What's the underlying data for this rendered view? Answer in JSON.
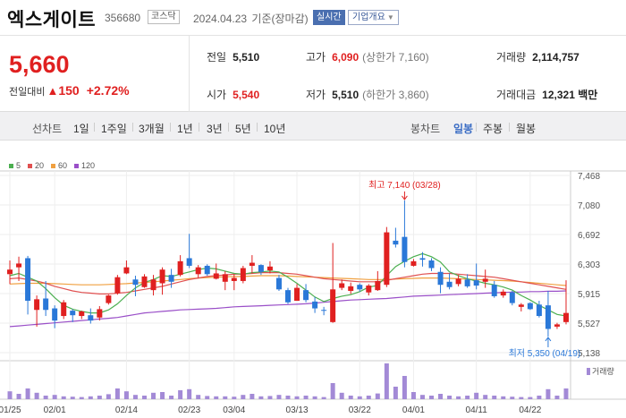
{
  "header": {
    "name": "엑스게이트",
    "code": "356680",
    "market": "코스닥",
    "asof_date": "2024.04.23",
    "asof_tag": "기준(장마감)",
    "realtime_label": "실시간",
    "company_label": "기업개요"
  },
  "quote": {
    "price": "5,660",
    "change_label": "전일대비",
    "change_value": "150",
    "change_pct": "+2.72%",
    "prev_label": "전일",
    "prev": "5,510",
    "high_label": "고가",
    "high": "6,090",
    "upper_limit": "(상한가 7,160)",
    "volume_label": "거래량",
    "volume": "2,114,757",
    "open_label": "시가",
    "open": "5,540",
    "low_label": "저가",
    "low": "5,510",
    "lower_limit": "(하한가 3,860)",
    "amount_label": "거래대금",
    "amount": "12,321",
    "amount_unit": "백만"
  },
  "period_tabs": {
    "label": "선차트",
    "items": [
      "1일",
      "1주일",
      "3개월",
      "1년",
      "3년",
      "5년",
      "10년"
    ]
  },
  "candle_tabs": {
    "label": "봉차트",
    "items": [
      "일봉",
      "주봉",
      "월봉"
    ],
    "active": "일봉"
  },
  "colors": {
    "up": "#e02020",
    "down": "#2a78d8",
    "ma5": "#4caf50",
    "ma20": "#e05050",
    "ma60": "#f0a040",
    "ma120": "#9a4fc8"
  },
  "chart_data": {
    "type": "candlestick",
    "legend": [
      {
        "name": "5",
        "color": "#4caf50"
      },
      {
        "name": "20",
        "color": "#e05050"
      },
      {
        "name": "60",
        "color": "#f0a040"
      },
      {
        "name": "120",
        "color": "#9a4fc8"
      }
    ],
    "y_ticks": [
      "7,468",
      "7,080",
      "6,692",
      "6,303",
      "5,915",
      "5,527",
      "5,138"
    ],
    "ylim": [
      5138,
      7468
    ],
    "x_ticks": [
      {
        "label": "01/25",
        "i": 0
      },
      {
        "label": "02/01",
        "i": 5
      },
      {
        "label": "02/14",
        "i": 13
      },
      {
        "label": "02/23",
        "i": 20
      },
      {
        "label": "03/04",
        "i": 25
      },
      {
        "label": "03/13",
        "i": 32
      },
      {
        "label": "03/22",
        "i": 39
      },
      {
        "label": "04/01",
        "i": 45
      },
      {
        "label": "04/11",
        "i": 52
      },
      {
        "label": "04/22",
        "i": 58
      }
    ],
    "max_annotation": "최고 7,140 (03/28)",
    "min_annotation": "최저 5,350 (04/19)",
    "volume_label": "거래량",
    "candles": [
      [
        6170,
        6350,
        6040,
        6230
      ],
      [
        6260,
        6400,
        6080,
        6310
      ],
      [
        6380,
        6410,
        5640,
        5820
      ],
      [
        5700,
        5890,
        5480,
        5840
      ],
      [
        5850,
        6080,
        5620,
        5700
      ],
      [
        5720,
        5760,
        5460,
        5560
      ],
      [
        5620,
        5830,
        5580,
        5800
      ],
      [
        5690,
        5710,
        5540,
        5630
      ],
      [
        5620,
        5690,
        5580,
        5680
      ],
      [
        5630,
        5720,
        5520,
        5560
      ],
      [
        5600,
        5750,
        5560,
        5710
      ],
      [
        5790,
        5900,
        5770,
        5890
      ],
      [
        5920,
        6160,
        5900,
        6130
      ],
      [
        6180,
        6350,
        6170,
        6260
      ],
      [
        6100,
        6150,
        5880,
        6030
      ],
      [
        6000,
        6170,
        5990,
        6140
      ],
      [
        5960,
        6160,
        5890,
        6100
      ],
      [
        6050,
        6260,
        5900,
        6230
      ],
      [
        6160,
        6240,
        5990,
        6070
      ],
      [
        6160,
        6420,
        6140,
        6340
      ],
      [
        6380,
        6700,
        6250,
        6280
      ],
      [
        6170,
        6290,
        6120,
        6260
      ],
      [
        6280,
        6300,
        6150,
        6170
      ],
      [
        6110,
        6310,
        6100,
        6180
      ],
      [
        6070,
        6210,
        5960,
        6170
      ],
      [
        6080,
        6170,
        5960,
        6120
      ],
      [
        6080,
        6280,
        6050,
        6250
      ],
      [
        6280,
        6420,
        6180,
        6320
      ],
      [
        6290,
        6300,
        6160,
        6200
      ],
      [
        6220,
        6340,
        6180,
        6270
      ],
      [
        6120,
        6160,
        5950,
        5970
      ],
      [
        5960,
        5990,
        5780,
        5800
      ],
      [
        5820,
        6040,
        5820,
        5990
      ],
      [
        5960,
        6040,
        5800,
        5830
      ],
      [
        5810,
        5870,
        5660,
        5720
      ],
      [
        5700,
        5740,
        5630,
        5690
      ],
      [
        5540,
        6580,
        5530,
        5970
      ],
      [
        5990,
        6100,
        5960,
        6050
      ],
      [
        5950,
        6060,
        5910,
        6010
      ],
      [
        6030,
        6050,
        5940,
        5970
      ],
      [
        5930,
        6040,
        5890,
        6020
      ],
      [
        5960,
        6210,
        5950,
        6080
      ],
      [
        6030,
        6790,
        6000,
        6720
      ],
      [
        6610,
        6780,
        6520,
        6560
      ],
      [
        6660,
        7140,
        6260,
        6330
      ],
      [
        6280,
        6370,
        6270,
        6340
      ],
      [
        6380,
        6460,
        6270,
        6360
      ],
      [
        6350,
        6380,
        6210,
        6250
      ],
      [
        6200,
        6260,
        5920,
        6030
      ],
      [
        6070,
        6180,
        5970,
        6000
      ],
      [
        6040,
        6160,
        6010,
        6110
      ],
      [
        6100,
        6170,
        5990,
        6010
      ],
      [
        6090,
        6310,
        5970,
        6020
      ],
      [
        6070,
        6230,
        5990,
        6110
      ],
      [
        6030,
        6080,
        5860,
        5880
      ],
      [
        5890,
        5970,
        5860,
        5940
      ],
      [
        5930,
        5950,
        5760,
        5790
      ],
      [
        5740,
        5790,
        5680,
        5770
      ],
      [
        5790,
        5800,
        5700,
        5710
      ],
      [
        5770,
        5820,
        5600,
        5620
      ],
      [
        5760,
        5950,
        5350,
        5450
      ],
      [
        5480,
        5530,
        5450,
        5510
      ],
      [
        5540,
        6090,
        5510,
        5660
      ]
    ],
    "ma5": [
      6150,
      6180,
      6130,
      6080,
      5980,
      5860,
      5760,
      5710,
      5680,
      5660,
      5660,
      5700,
      5780,
      5890,
      5990,
      6060,
      6100,
      6150,
      6140,
      6170,
      6200,
      6230,
      6250,
      6240,
      6210,
      6180,
      6170,
      6190,
      6200,
      6210,
      6200,
      6130,
      6050,
      5960,
      5870,
      5810,
      5850,
      5880,
      5900,
      5940,
      6000,
      6020,
      6150,
      6270,
      6340,
      6400,
      6440,
      6400,
      6330,
      6200,
      6150,
      6110,
      6080,
      6050,
      6030,
      6000,
      5960,
      5890,
      5830,
      5760,
      5700,
      5640,
      5620
    ],
    "ma20": [
      6110,
      6120,
      6100,
      6080,
      6050,
      6010,
      5980,
      5950,
      5930,
      5920,
      5910,
      5910,
      5920,
      5930,
      5950,
      5970,
      5990,
      6010,
      6040,
      6070,
      6100,
      6120,
      6140,
      6150,
      6160,
      6170,
      6170,
      6180,
      6190,
      6190,
      6190,
      6180,
      6170,
      6150,
      6130,
      6110,
      6100,
      6090,
      6080,
      6070,
      6070,
      6070,
      6090,
      6110,
      6130,
      6150,
      6170,
      6180,
      6180,
      6180,
      6170,
      6160,
      6150,
      6140,
      6130,
      6110,
      6090,
      6070,
      6050,
      6030,
      6010,
      5990,
      5970
    ],
    "ma60": [
      6040,
      6045,
      6050,
      6050,
      6050,
      6045,
      6040,
      6035,
      6030,
      6030,
      6030,
      6035,
      6040,
      6045,
      6055,
      6060,
      6070,
      6080,
      6090,
      6100,
      6110,
      6120,
      6125,
      6130,
      6135,
      6140,
      6140,
      6145,
      6150,
      6150,
      6150,
      6145,
      6140,
      6135,
      6130,
      6125,
      6120,
      6115,
      6110,
      6105,
      6100,
      6100,
      6100,
      6105,
      6110,
      6115,
      6120,
      6120,
      6120,
      6115,
      6110,
      6105,
      6100,
      6095,
      6090,
      6085,
      6080,
      6070,
      6060,
      6050,
      6040,
      6030,
      6020
    ],
    "ma120": [
      5480,
      5490,
      5500,
      5510,
      5520,
      5530,
      5540,
      5550,
      5560,
      5570,
      5580,
      5590,
      5600,
      5620,
      5640,
      5660,
      5670,
      5680,
      5690,
      5700,
      5705,
      5710,
      5715,
      5720,
      5730,
      5740,
      5745,
      5750,
      5755,
      5760,
      5765,
      5770,
      5775,
      5780,
      5790,
      5800,
      5810,
      5820,
      5830,
      5835,
      5840,
      5845,
      5850,
      5860,
      5870,
      5880,
      5885,
      5890,
      5895,
      5900,
      5905,
      5910,
      5915,
      5920,
      5925,
      5930,
      5935,
      5935,
      5940,
      5940,
      5945,
      5945,
      5950
    ],
    "volumes": [
      0.22,
      0.15,
      0.3,
      0.18,
      0.1,
      0.12,
      0.08,
      0.07,
      0.06,
      0.08,
      0.1,
      0.14,
      0.3,
      0.22,
      0.12,
      0.1,
      0.18,
      0.2,
      0.1,
      0.25,
      0.28,
      0.12,
      0.09,
      0.08,
      0.08,
      0.07,
      0.12,
      0.15,
      0.08,
      0.09,
      0.12,
      0.1,
      0.08,
      0.1,
      0.08,
      0.06,
      0.45,
      0.18,
      0.1,
      0.08,
      0.1,
      0.16,
      1.0,
      0.35,
      0.65,
      0.2,
      0.12,
      0.1,
      0.15,
      0.1,
      0.08,
      0.1,
      0.18,
      0.12,
      0.1,
      0.08,
      0.07,
      0.06,
      0.06,
      0.1,
      0.28,
      0.1,
      0.3
    ]
  }
}
